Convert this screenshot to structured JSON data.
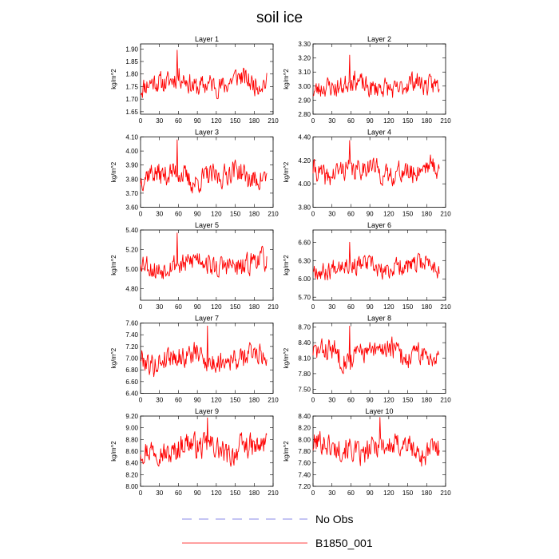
{
  "title": "soil ice",
  "colors": {
    "series": "#ff0000",
    "obs": "#8a8ae8",
    "axis": "#000000"
  },
  "legend": {
    "obs_label": "No Obs",
    "model_label": "B1850_001"
  },
  "chart_data": [
    {
      "type": "line",
      "title": "Layer 1",
      "ylabel": "kg/m^2",
      "xlim": [
        0,
        210
      ],
      "ylim": [
        1.64,
        1.92
      ],
      "xticks": [
        0,
        30,
        60,
        90,
        120,
        150,
        180,
        210
      ],
      "yticks": [
        1.65,
        1.7,
        1.75,
        1.8,
        1.85,
        1.9
      ],
      "ytick_labels": [
        "1.65",
        "1.70",
        "1.75",
        "1.80",
        "1.85",
        "1.90"
      ],
      "x_start": 0,
      "x_end": 200,
      "base": 1.765,
      "amp": 0.045,
      "peak_x": 58,
      "peak_y": 1.895,
      "seed": 11,
      "series": [
        {
          "name": "B1850_001"
        }
      ]
    },
    {
      "type": "line",
      "title": "Layer 2",
      "ylabel": "kg/m^2",
      "xlim": [
        0,
        210
      ],
      "ylim": [
        2.8,
        3.3
      ],
      "xticks": [
        0,
        30,
        60,
        90,
        120,
        150,
        180,
        210
      ],
      "yticks": [
        2.8,
        2.9,
        3.0,
        3.1,
        3.2,
        3.3
      ],
      "ytick_labels": [
        "2.80",
        "2.90",
        "3.00",
        "3.10",
        "3.20",
        "3.30"
      ],
      "x_start": 0,
      "x_end": 200,
      "base": 3.0,
      "amp": 0.075,
      "peak_x": 58,
      "peak_y": 3.22,
      "seed": 23,
      "series": [
        {
          "name": "B1850_001"
        }
      ]
    },
    {
      "type": "line",
      "title": "Layer 3",
      "ylabel": "kg/m^2",
      "xlim": [
        0,
        210
      ],
      "ylim": [
        3.6,
        4.1
      ],
      "xticks": [
        0,
        30,
        60,
        90,
        120,
        150,
        180,
        210
      ],
      "yticks": [
        3.6,
        3.7,
        3.8,
        3.9,
        4.0,
        4.1
      ],
      "ytick_labels": [
        "3.60",
        "3.70",
        "3.80",
        "3.90",
        "4.00",
        "4.10"
      ],
      "x_start": 0,
      "x_end": 200,
      "base": 3.82,
      "amp": 0.085,
      "peak_x": 58,
      "peak_y": 4.08,
      "seed": 37,
      "series": [
        {
          "name": "B1850_001"
        }
      ]
    },
    {
      "type": "line",
      "title": "Layer 4",
      "ylabel": "kg/m^2",
      "xlim": [
        0,
        210
      ],
      "ylim": [
        3.8,
        4.4
      ],
      "xticks": [
        0,
        30,
        60,
        90,
        120,
        150,
        180,
        210
      ],
      "yticks": [
        3.8,
        4.0,
        4.2,
        4.4
      ],
      "ytick_labels": [
        "3.80",
        "4.00",
        "4.20",
        "4.40"
      ],
      "x_start": 0,
      "x_end": 200,
      "base": 4.11,
      "amp": 0.095,
      "peak_x": 58,
      "peak_y": 4.37,
      "seed": 41,
      "series": [
        {
          "name": "B1850_001"
        }
      ]
    },
    {
      "type": "line",
      "title": "Layer 5",
      "ylabel": "kg/m^2",
      "xlim": [
        0,
        210
      ],
      "ylim": [
        4.68,
        5.4
      ],
      "xticks": [
        0,
        30,
        60,
        90,
        120,
        150,
        180,
        210
      ],
      "yticks": [
        4.8,
        5.0,
        5.2,
        5.4
      ],
      "ytick_labels": [
        "4.80",
        "5.00",
        "5.20",
        "5.40"
      ],
      "x_start": 0,
      "x_end": 200,
      "base": 5.05,
      "amp": 0.12,
      "peak_x": 58,
      "peak_y": 5.37,
      "seed": 53,
      "series": [
        {
          "name": "B1850_001"
        }
      ]
    },
    {
      "type": "line",
      "title": "Layer 6",
      "ylabel": "kg/m^2",
      "xlim": [
        0,
        210
      ],
      "ylim": [
        5.65,
        6.8
      ],
      "xticks": [
        0,
        30,
        60,
        90,
        120,
        150,
        180,
        210
      ],
      "yticks": [
        5.7,
        6.0,
        6.3,
        6.6
      ],
      "ytick_labels": [
        "5.70",
        "6.00",
        "6.30",
        "6.60"
      ],
      "x_start": 0,
      "x_end": 200,
      "base": 6.2,
      "amp": 0.16,
      "peak_x": 58,
      "peak_y": 6.6,
      "seed": 67,
      "series": [
        {
          "name": "B1850_001"
        }
      ]
    },
    {
      "type": "line",
      "title": "Layer 7",
      "ylabel": "kg/m^2",
      "xlim": [
        0,
        210
      ],
      "ylim": [
        6.4,
        7.6
      ],
      "xticks": [
        0,
        30,
        60,
        90,
        120,
        150,
        180,
        210
      ],
      "yticks": [
        6.4,
        6.6,
        6.8,
        7.0,
        7.2,
        7.4,
        7.6
      ],
      "ytick_labels": [
        "6.40",
        "6.60",
        "6.80",
        "7.00",
        "7.20",
        "7.40",
        "7.60"
      ],
      "x_start": 0,
      "x_end": 200,
      "base": 7.0,
      "amp": 0.2,
      "peak_x": 106,
      "peak_y": 7.55,
      "seed": 79,
      "series": [
        {
          "name": "B1850_001"
        }
      ]
    },
    {
      "type": "line",
      "title": "Layer 8",
      "ylabel": "kg/m^2",
      "xlim": [
        0,
        210
      ],
      "ylim": [
        7.42,
        8.78
      ],
      "xticks": [
        0,
        30,
        60,
        90,
        120,
        150,
        180,
        210
      ],
      "yticks": [
        7.5,
        7.8,
        8.1,
        8.4,
        8.7
      ],
      "ytick_labels": [
        "7.50",
        "7.80",
        "8.10",
        "8.40",
        "8.70"
      ],
      "x_start": 0,
      "x_end": 200,
      "base": 8.2,
      "amp": 0.23,
      "peak_x": 58,
      "peak_y": 8.72,
      "seed": 83,
      "series": [
        {
          "name": "B1850_001"
        }
      ]
    },
    {
      "type": "line",
      "title": "Layer 9",
      "ylabel": "kg/m^2",
      "xlim": [
        0,
        210
      ],
      "ylim": [
        8.0,
        9.2
      ],
      "xticks": [
        0,
        30,
        60,
        90,
        120,
        150,
        180,
        210
      ],
      "yticks": [
        8.0,
        8.2,
        8.4,
        8.6,
        8.8,
        9.0,
        9.2
      ],
      "ytick_labels": [
        "8.00",
        "8.20",
        "8.40",
        "8.60",
        "8.80",
        "9.00",
        "9.20"
      ],
      "x_start": 0,
      "x_end": 200,
      "base": 8.65,
      "amp": 0.22,
      "peak_x": 106,
      "peak_y": 9.17,
      "seed": 97,
      "series": [
        {
          "name": "B1850_001"
        }
      ]
    },
    {
      "type": "line",
      "title": "Layer 10",
      "ylabel": "kg/m^2",
      "xlim": [
        0,
        210
      ],
      "ylim": [
        7.2,
        8.4
      ],
      "xticks": [
        0,
        30,
        60,
        90,
        120,
        150,
        180,
        210
      ],
      "yticks": [
        7.2,
        7.4,
        7.6,
        7.8,
        8.0,
        8.2,
        8.4
      ],
      "ytick_labels": [
        "7.20",
        "7.40",
        "7.60",
        "7.80",
        "8.00",
        "8.20",
        "8.40"
      ],
      "x_start": 0,
      "x_end": 200,
      "base": 7.85,
      "amp": 0.22,
      "peak_x": 106,
      "peak_y": 8.38,
      "seed": 101,
      "series": [
        {
          "name": "B1850_001"
        }
      ]
    }
  ]
}
